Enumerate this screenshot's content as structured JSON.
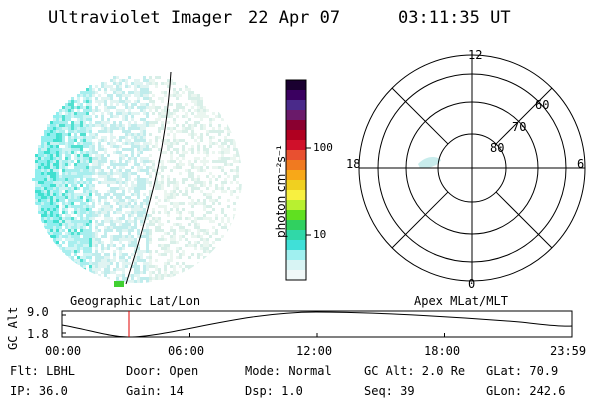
{
  "header": {
    "instrument": "Ultraviolet Imager",
    "date": "22 Apr 07",
    "time": "03:11:35 UT"
  },
  "geographic_panel": {
    "label": "Geographic Lat/Lon"
  },
  "colorbar": {
    "unit_label": "photon cm⁻²s⁻¹",
    "tick_labels": [
      "100",
      "10"
    ],
    "colors": [
      "#1a0030",
      "#3a0060",
      "#4a2a8a",
      "#6a1a6a",
      "#8a0030",
      "#b00020",
      "#d0102a",
      "#e85030",
      "#f07a20",
      "#f8a818",
      "#f0d020",
      "#f8f040",
      "#b8f030",
      "#60e020",
      "#30d060",
      "#30d8a8",
      "#40e0d8",
      "#a0f0f0",
      "#d8f4f4",
      "#f0f8f8"
    ]
  },
  "polar_panel": {
    "label": "Apex MLat/MLT",
    "mlt_labels": [
      "12",
      "18",
      "6",
      "0"
    ],
    "lat_labels": [
      "60",
      "70",
      "80"
    ]
  },
  "orbit_plot": {
    "y_title": "GC Alt",
    "y_ticks": [
      "9.0",
      "1.8"
    ],
    "x_ticks": [
      "00:00",
      "06:00",
      "12:00",
      "18:00",
      "23:59"
    ],
    "marker_time": "03:11",
    "marker_color": "#e00000"
  },
  "info": {
    "flt": "Flt: LBHL",
    "door": "Door: Open",
    "mode": "Mode: Normal",
    "gc_alt": "GC Alt: 2.0 Re",
    "glat": "GLat:  70.9",
    "ip": "IP: 36.0",
    "gain": "Gain: 14",
    "dsp": "Dsp:    1.0",
    "seq": "Seq: 39",
    "glon": "GLon: 242.6"
  }
}
